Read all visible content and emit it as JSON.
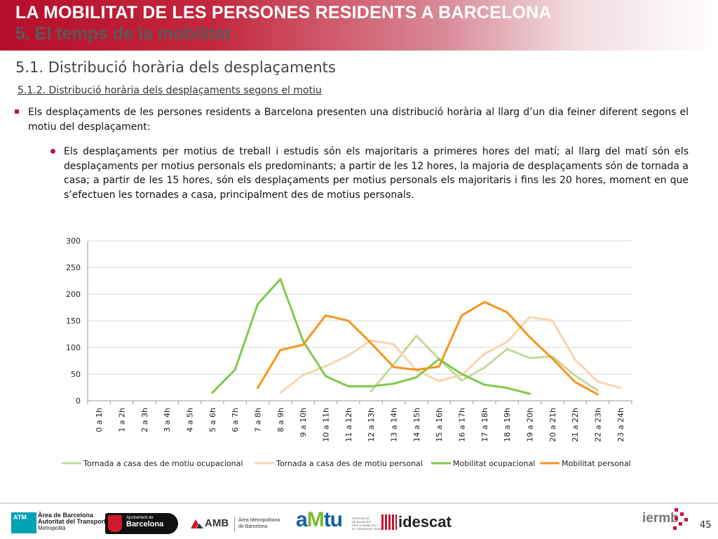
{
  "header": {
    "title": "LA MOBILITAT DE LES PERSONES RESIDENTS A BARCELONA",
    "subtitle": "5. El temps de la mobilitat"
  },
  "section": {
    "title": "5.1. Distribució horària dels desplaçaments",
    "subtitle": "5.1.2. Distribució horària dels desplaçaments segons el motiu"
  },
  "bullets": {
    "main": "Els desplaçaments de les persones residents a Barcelona presenten una distribució horària al llarg d’un dia feiner diferent segons el motiu del desplaçament:",
    "sub": "Els desplaçaments per motius de treball i estudis són els majoritaris a primeres hores del matí; al llarg del matí són els desplaçaments per motius personals els predominants; a partir de les 12 hores, la majoria de desplaçaments són de tornada a casa; a partir de les 15 hores, són els desplaçaments per motius personals els majoritaris i fins les 20 hores, moment en que s’efectuen les tornades a casa, principalment des de motius personals."
  },
  "chart_data": {
    "type": "line",
    "title": "",
    "xlabel": "",
    "ylabel": "",
    "ylim": [
      0,
      300
    ],
    "yticks": [
      0,
      50,
      100,
      150,
      200,
      250,
      300
    ],
    "grid": true,
    "legend": "bottom",
    "categories": [
      "0 a 1h",
      "1 a 2h",
      "2 a 3h",
      "3 a 4h",
      "4 a 5h",
      "5 a 6h",
      "6 a 7h",
      "7 a 8h",
      "8 a 9h",
      "9 a 10h",
      "10 a 11h",
      "11 a 12h",
      "12 a 13h",
      "13 a 14h",
      "14 a 15h",
      "15 a 16h",
      "16 a 17h",
      "17 a 18h",
      "18 a 19h",
      "19 a 20h",
      "20 a 21h",
      "21 a 22h",
      "22 a 23h",
      "23 a 24h"
    ],
    "series": [
      {
        "name": "Tornada a casa des de motiu ocupacional",
        "color": "#c3d99b",
        "values": [
          null,
          null,
          null,
          null,
          null,
          null,
          null,
          null,
          null,
          null,
          null,
          null,
          18,
          68,
          122,
          78,
          38,
          62,
          97,
          80,
          83,
          47,
          19,
          null
        ]
      },
      {
        "name": "Tornada a casa des de motiu personal",
        "color": "#fcd3ae",
        "values": [
          null,
          null,
          null,
          null,
          null,
          null,
          null,
          null,
          15,
          48,
          65,
          85,
          113,
          106,
          57,
          37,
          48,
          88,
          110,
          157,
          150,
          77,
          36,
          24
        ]
      },
      {
        "name": "Mobilitat ocupacional",
        "color": "#80c94a",
        "values": [
          null,
          null,
          null,
          null,
          null,
          15,
          58,
          181,
          228,
          112,
          46,
          27,
          27,
          32,
          44,
          78,
          50,
          30,
          24,
          13,
          null,
          null,
          null,
          null
        ]
      },
      {
        "name": "Mobilitat personal",
        "color": "#f7941d",
        "values": [
          null,
          null,
          null,
          null,
          null,
          null,
          null,
          24,
          95,
          105,
          160,
          150,
          108,
          63,
          58,
          64,
          160,
          185,
          166,
          119,
          79,
          35,
          12,
          null
        ]
      }
    ]
  },
  "footer": {
    "atm_badge": "ATM",
    "atm_line1": "Àrea de Barcelona",
    "atm_line2": "Autoritat del Transport",
    "atm_line3": "Metropolità",
    "bcn_small": "Ajuntament de",
    "bcn_big": "Barcelona",
    "amb_name": "AMB",
    "amb_line1": "Àrea Metropolitana",
    "amb_line2": "de Barcelona",
    "amtu_a": "a",
    "amtu_m": "M",
    "amtu_tu": "tu",
    "amtu_sub1": "ASSOCIACIÓ",
    "amtu_sub2": "DE MUNICIPIS",
    "amtu_sub3": "PER LA MOBILITAT I",
    "amtu_sub4": "EL TRANSPORT URBÀ",
    "idescat": "idescat",
    "iermb": "iermb",
    "page_number": "45"
  }
}
